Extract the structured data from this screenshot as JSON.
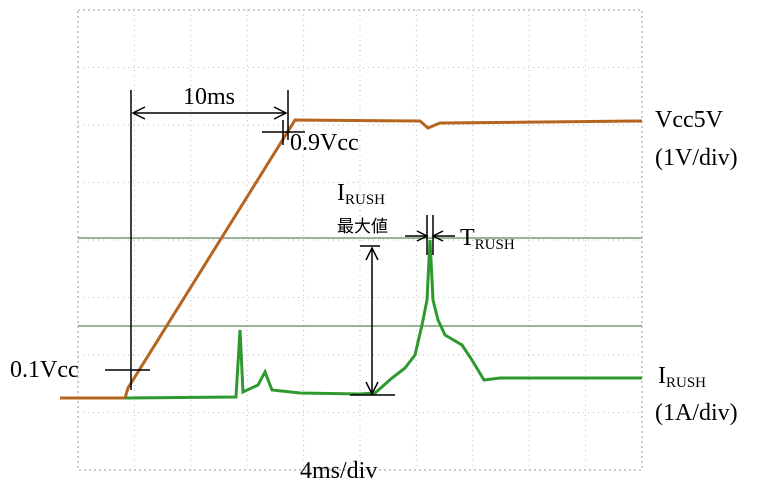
{
  "annotations": {
    "rise_time": "10ms",
    "high_level": "0.9Vcc",
    "low_level": "0.1Vcc",
    "vcc_trace": {
      "name": "Vcc5V",
      "scale": "(1V/div)"
    },
    "irush_peak": {
      "symbol": "I",
      "subscript": "RUSH",
      "caption": "最大値"
    },
    "trush": {
      "symbol": "T",
      "subscript": "RUSH"
    },
    "irush_trace": {
      "symbol": "I",
      "subscript": "RUSH",
      "scale": "(1A/div)"
    },
    "time_scale": "4ms/div"
  }
}
